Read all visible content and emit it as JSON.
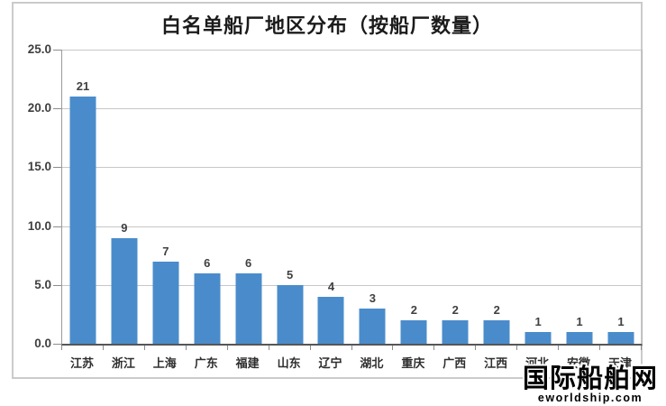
{
  "chart_data": {
    "type": "bar",
    "title": "白名单船厂地区分布（按船厂数量）",
    "categories": [
      "江苏",
      "浙江",
      "上海",
      "广东",
      "福建",
      "山东",
      "辽宁",
      "湖北",
      "重庆",
      "广西",
      "江西",
      "河北",
      "安徽",
      "天津"
    ],
    "values": [
      21,
      9,
      7,
      6,
      6,
      5,
      4,
      3,
      2,
      2,
      2,
      1,
      1,
      1
    ],
    "xlabel": "",
    "ylabel": "",
    "ylim": [
      0,
      25
    ],
    "yticks": [
      {
        "value": 0,
        "label": "0.0"
      },
      {
        "value": 5,
        "label": "5.0"
      },
      {
        "value": 10,
        "label": "10.0"
      },
      {
        "value": 15,
        "label": "15.0"
      },
      {
        "value": 20,
        "label": "20.0"
      },
      {
        "value": 25,
        "label": "25.0"
      }
    ],
    "grid": true,
    "legend": false,
    "bar_color": "#4A8CCB",
    "value_label_color": "#404040"
  },
  "watermark": {
    "title": "国际船舶网",
    "subtitle": "eworldship.com"
  },
  "colors": {
    "background": "#FFFFFF",
    "frame_border": "#CBCBCB",
    "gridline": "#C7C7C7",
    "axis_line": "#9A9A9A",
    "baseline": "#565656",
    "bar": "#4A8CCB",
    "text": "#3F3F3F",
    "watermark_text": "#000000"
  }
}
